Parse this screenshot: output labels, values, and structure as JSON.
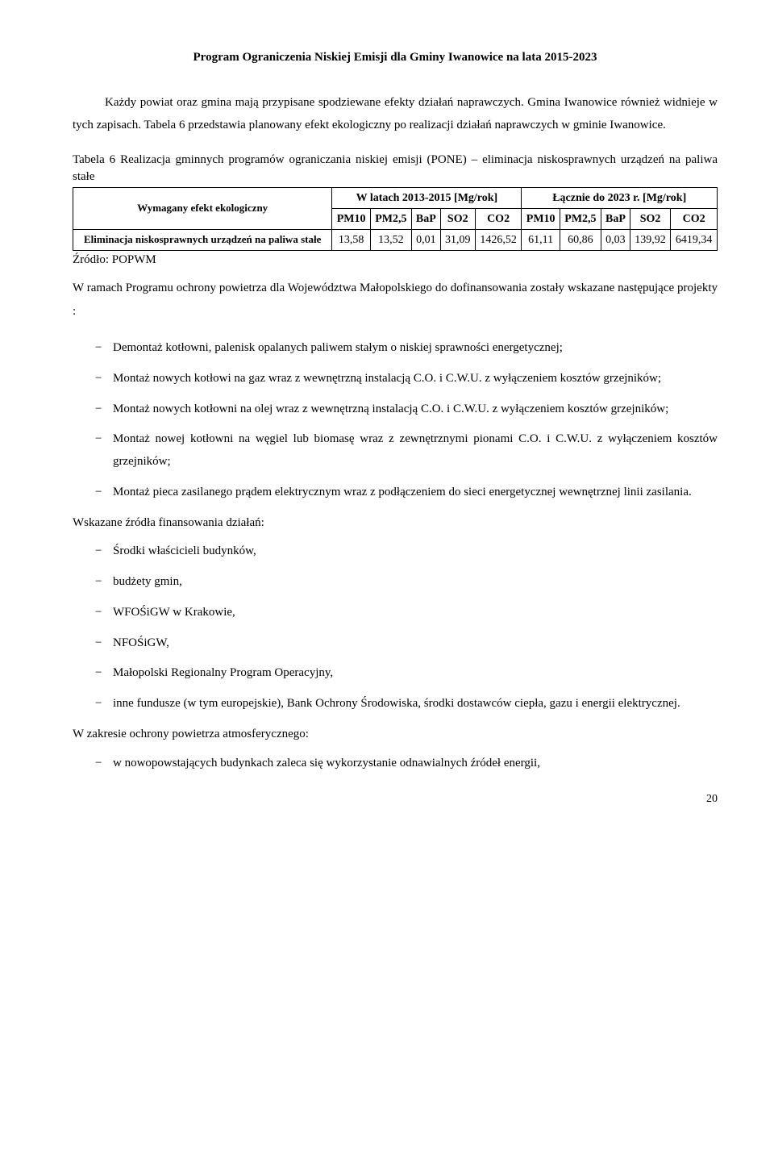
{
  "header": {
    "title": "Program Ograniczenia Niskiej Emisji dla Gminy Iwanowice na lata 2015-2023"
  },
  "intro": {
    "p1": "Każdy powiat oraz gmina mają przypisane spodziewane efekty działań naprawczych. Gmina Iwanowice również widnieje w tych zapisach. Tabela 6 przedstawia planowany efekt ekologiczny po realizacji działań naprawczych w gminie Iwanowice."
  },
  "table6": {
    "caption": "Tabela 6 Realizacja gminnych programów ograniczania niskiej emisji (PONE) – eliminacja niskosprawnych urządzeń na paliwa stałe",
    "row_header": "Wymagany efekt ekologiczny",
    "group1": "W latach 2013-2015 [Mg/rok]",
    "group2": "Łącznie do 2023 r. [Mg/rok]",
    "cols": [
      "PM10",
      "PM2,5",
      "BaP",
      "SO2",
      "CO2",
      "PM10",
      "PM2,5",
      "BaP",
      "SO2",
      "CO2"
    ],
    "row_label": "Eliminacja niskosprawnych urządzeń na paliwa stałe",
    "row_values": [
      "13,58",
      "13,52",
      "0,01",
      "31,09",
      "1426,52",
      "61,11",
      "60,86",
      "0,03",
      "139,92",
      "6419,34"
    ],
    "source": "Źródło: POPWM"
  },
  "after_table": {
    "p1": "W ramach Programu ochrony powietrza dla Województwa Małopolskiego do dofinansowania zostały wskazane następujące projekty :"
  },
  "projects": [
    "Demontaż kotłowni, palenisk opalanych paliwem stałym o niskiej sprawności energetycznej;",
    "Montaż nowych kotłowi na gaz wraz z wewnętrzną instalacją C.O. i C.W.U. z wyłączeniem kosztów grzejników;",
    "Montaż nowych kotłowni na olej wraz z wewnętrzną instalacją C.O. i C.W.U. z wyłączeniem kosztów grzejników;",
    "Montaż nowej kotłowni na węgiel lub biomasę wraz z zewnętrznymi pionami C.O. i C.W.U. z wyłączeniem kosztów grzejników;",
    "Montaż pieca zasilanego prądem elektrycznym wraz z podłączeniem do sieci energetycznej wewnętrznej linii zasilania."
  ],
  "financing_heading": "Wskazane źródła finansowania działań:",
  "financing": [
    "Środki właścicieli budynków,",
    "budżety gmin,",
    "WFOŚiGW w Krakowie,",
    "NFOŚiGW,",
    "Małopolski Regionalny Program Operacyjny,",
    "inne fundusze (w tym europejskie), Bank Ochrony Środowiska, środki dostawców ciepła, gazu i energii elektrycznej."
  ],
  "atmo_heading": "W zakresie ochrony powietrza atmosferycznego:",
  "atmo": [
    "w nowopowstających budynkach zaleca się wykorzystanie odnawialnych źródeł energii,"
  ],
  "page_number": "20"
}
